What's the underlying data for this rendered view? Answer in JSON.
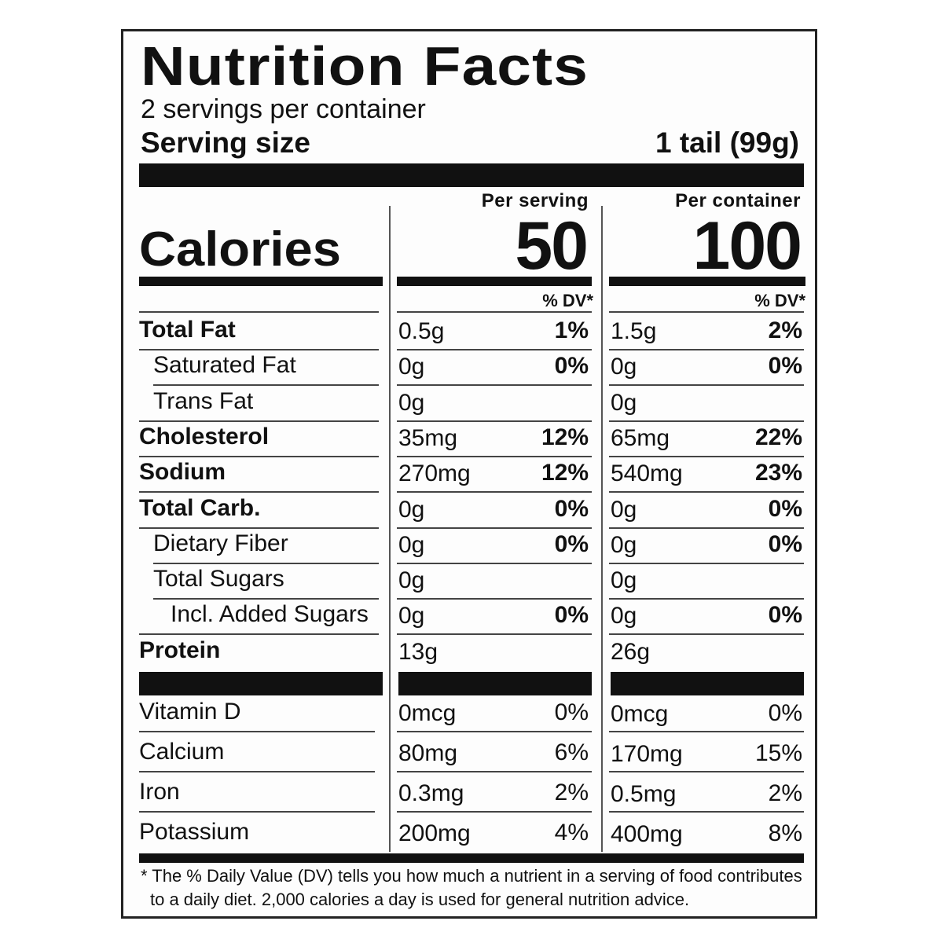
{
  "title": "Nutrition Facts",
  "servings_per_container": "2 servings per container",
  "serving_size": {
    "label": "Serving size",
    "value": "1 tail (99g)"
  },
  "columns": {
    "per_serving": "Per serving",
    "per_container": "Per container"
  },
  "calories": {
    "label": "Calories",
    "per_serving": "50",
    "per_container": "100"
  },
  "dv_header": "% DV*",
  "nutrients": [
    {
      "name": "Total Fat",
      "bold": true,
      "indent": 0,
      "s_amt": "0.5g",
      "s_dv": "1%",
      "c_amt": "1.5g",
      "c_dv": "2%"
    },
    {
      "name": "Saturated Fat",
      "bold": false,
      "indent": 1,
      "s_amt": "0g",
      "s_dv": "0%",
      "c_amt": "0g",
      "c_dv": "0%"
    },
    {
      "name": "Trans Fat",
      "bold": false,
      "indent": 1,
      "s_amt": "0g",
      "s_dv": "",
      "c_amt": "0g",
      "c_dv": ""
    },
    {
      "name": "Cholesterol",
      "bold": true,
      "indent": 0,
      "s_amt": "35mg",
      "s_dv": "12%",
      "c_amt": "65mg",
      "c_dv": "22%"
    },
    {
      "name": "Sodium",
      "bold": true,
      "indent": 0,
      "s_amt": "270mg",
      "s_dv": "12%",
      "c_amt": "540mg",
      "c_dv": "23%"
    },
    {
      "name": "Total Carb.",
      "bold": true,
      "indent": 0,
      "s_amt": "0g",
      "s_dv": "0%",
      "c_amt": "0g",
      "c_dv": "0%"
    },
    {
      "name": "Dietary Fiber",
      "bold": false,
      "indent": 1,
      "s_amt": "0g",
      "s_dv": "0%",
      "c_amt": "0g",
      "c_dv": "0%"
    },
    {
      "name": "Total Sugars",
      "bold": false,
      "indent": 1,
      "s_amt": "0g",
      "s_dv": "",
      "c_amt": "0g",
      "c_dv": ""
    },
    {
      "name": "Incl. Added Sugars",
      "bold": false,
      "indent": 2,
      "s_amt": "0g",
      "s_dv": "0%",
      "c_amt": "0g",
      "c_dv": "0%"
    },
    {
      "name": "Protein",
      "bold": true,
      "indent": 0,
      "s_amt": "13g",
      "s_dv": "",
      "c_amt": "26g",
      "c_dv": ""
    }
  ],
  "vitamins": [
    {
      "name": "Vitamin D",
      "s_amt": "0mcg",
      "s_dv": "0%",
      "c_amt": "0mcg",
      "c_dv": "0%"
    },
    {
      "name": "Calcium",
      "s_amt": "80mg",
      "s_dv": "6%",
      "c_amt": "170mg",
      "c_dv": "15%"
    },
    {
      "name": "Iron",
      "s_amt": "0.3mg",
      "s_dv": "2%",
      "c_amt": "0.5mg",
      "c_dv": "2%"
    },
    {
      "name": "Potassium",
      "s_amt": "200mg",
      "s_dv": "4%",
      "c_amt": "400mg",
      "c_dv": "8%"
    }
  ],
  "footnote": {
    "line1": "* The % Daily Value (DV) tells you how much a nutrient in a serving of food contributes",
    "line2": "to a daily diet. 2,000 calories a day is used for general nutrition advice."
  }
}
